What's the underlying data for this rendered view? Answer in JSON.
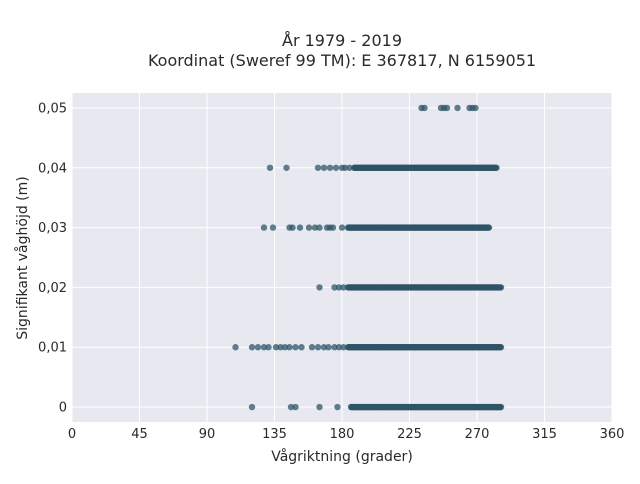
{
  "chart_data": {
    "type": "scatter",
    "title_line1": "År 1979 - 2019",
    "title_line2": "Koordinat (Sweref 99 TM): E 367817, N 6159051",
    "xlabel": "Vågriktning (grader)",
    "ylabel": "Signifikant våghöjd (m)",
    "xlim": [
      0,
      360
    ],
    "ylim": [
      -0.0025,
      0.0525
    ],
    "grid": true,
    "point_color": "#2f5468",
    "background_color": "#e8e9f0",
    "x_ticks": [
      0,
      45,
      90,
      135,
      180,
      225,
      270,
      315,
      360
    ],
    "x_tick_labels": [
      "0",
      "45",
      "90",
      "135",
      "180",
      "225",
      "270",
      "315",
      "360"
    ],
    "y_ticks": [
      0,
      0.01,
      0.02,
      0.03,
      0.04,
      0.05
    ],
    "y_tick_labels": [
      "0",
      "0,01",
      "0,02",
      "0,03",
      "0,04",
      "0,05"
    ],
    "bands": [
      {
        "y": 0.0,
        "sparse_x": [
          120,
          146,
          149,
          165,
          177
        ],
        "dense_range": [
          186,
          286
        ]
      },
      {
        "y": 0.01,
        "sparse_x": [
          109,
          120,
          124,
          128,
          131,
          136,
          139,
          142,
          145,
          149,
          153,
          160,
          164,
          168,
          171,
          175,
          178,
          181
        ],
        "dense_range": [
          184,
          286
        ]
      },
      {
        "y": 0.02,
        "sparse_x": [
          165,
          175,
          178,
          181
        ],
        "dense_range": [
          184,
          286
        ]
      },
      {
        "y": 0.03,
        "sparse_x": [
          128,
          134,
          145,
          147,
          152,
          158,
          162,
          165,
          170,
          172,
          174,
          180
        ],
        "dense_range": [
          184,
          278
        ]
      },
      {
        "y": 0.04,
        "sparse_x": [
          132,
          143,
          164,
          168,
          172,
          176,
          180,
          182,
          185
        ],
        "dense_range": [
          188,
          283
        ]
      },
      {
        "y": 0.05,
        "sparse_x": [
          233,
          235,
          246,
          248,
          250,
          257,
          265,
          267,
          269
        ],
        "dense_range": null
      }
    ]
  }
}
